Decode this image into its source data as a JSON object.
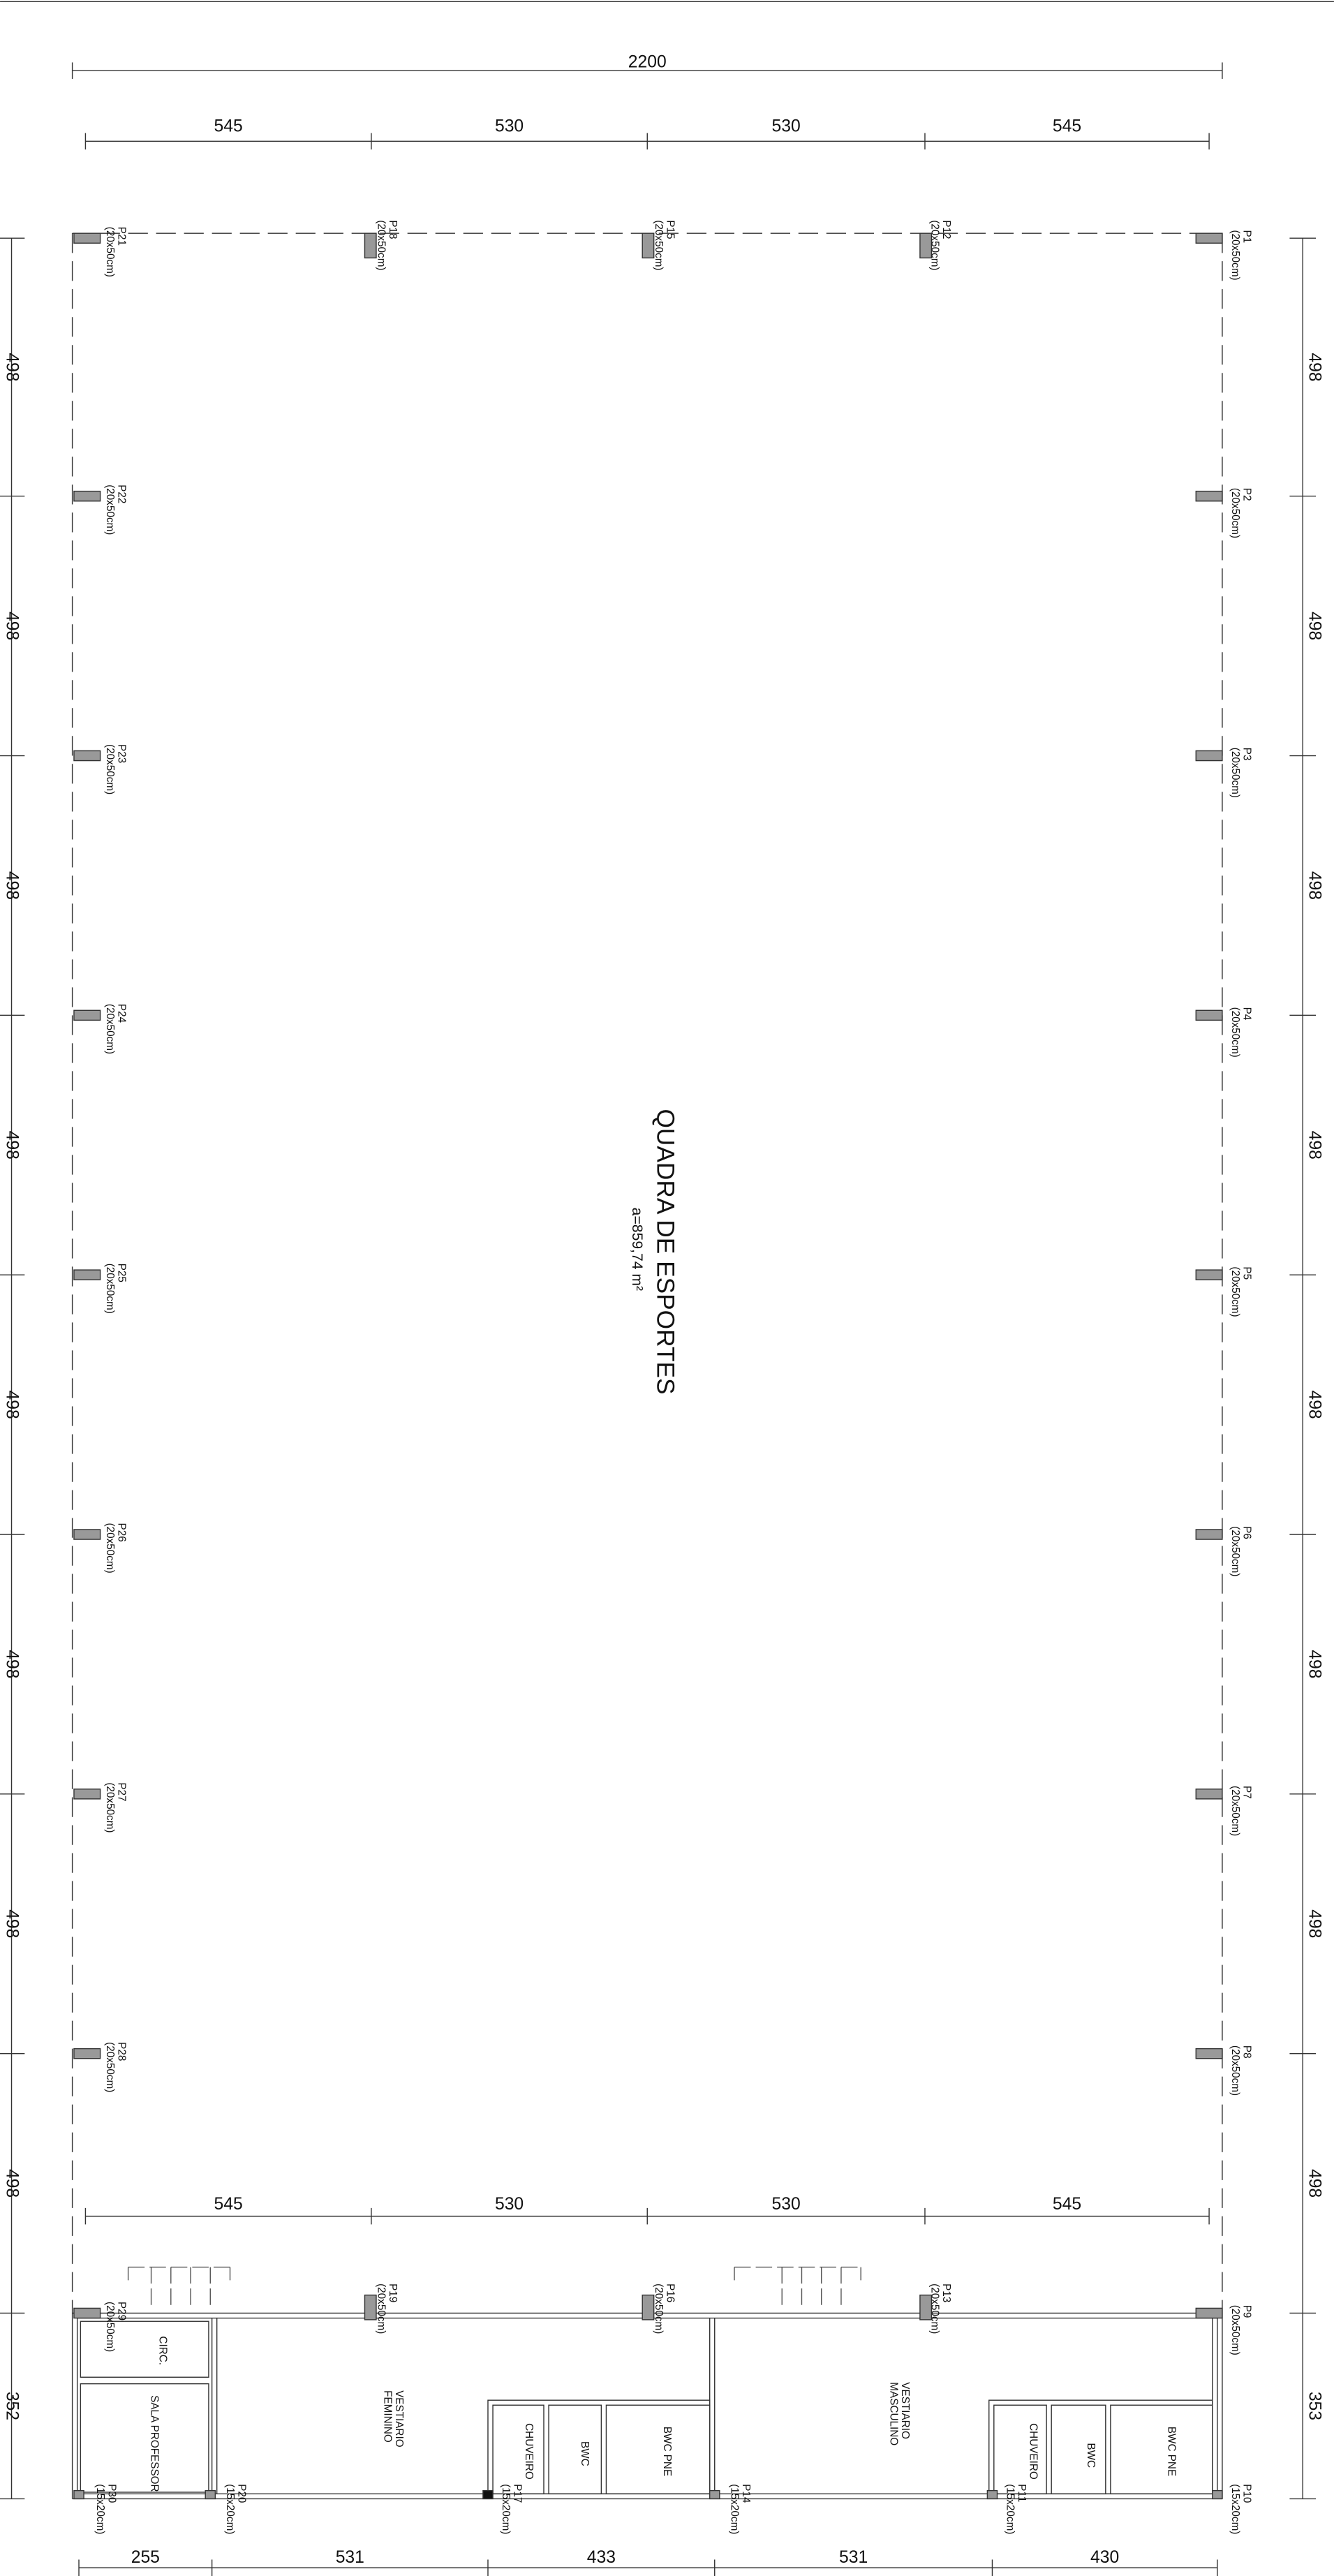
{
  "dimensions": {
    "overall": "2200",
    "top": [
      "545",
      "530",
      "530",
      "545"
    ],
    "left": [
      "498",
      "498",
      "498",
      "498",
      "498",
      "498",
      "498",
      "498",
      "352"
    ],
    "right": [
      "498",
      "498",
      "498",
      "498",
      "498",
      "498",
      "498",
      "498",
      "353"
    ],
    "bottom_upper": [
      "545",
      "530",
      "530",
      "545"
    ],
    "bottom": [
      "255",
      "531",
      "433",
      "531",
      "430"
    ]
  },
  "pillars": [
    {
      "name": "P1",
      "size": "(20x50cm)"
    },
    {
      "name": "P2",
      "size": "(20x50cm)"
    },
    {
      "name": "P3",
      "size": "(20x50cm)"
    },
    {
      "name": "P4",
      "size": "(20x50cm)"
    },
    {
      "name": "P5",
      "size": "(20x50cm)"
    },
    {
      "name": "P6",
      "size": "(20x50cm)"
    },
    {
      "name": "P7",
      "size": "(20x50cm)"
    },
    {
      "name": "P8",
      "size": "(20x50cm)"
    },
    {
      "name": "P9",
      "size": "(20x50cm)"
    },
    {
      "name": "P10",
      "size": "(15x20cm)"
    },
    {
      "name": "P11",
      "size": "(15x20cm)"
    },
    {
      "name": "P12",
      "size": "(20x50cm)"
    },
    {
      "name": "P13",
      "size": "(20x50cm)"
    },
    {
      "name": "P14",
      "size": "(15x20cm)"
    },
    {
      "name": "P15",
      "size": "(20x50cm)"
    },
    {
      "name": "P16",
      "size": "(20x50cm)"
    },
    {
      "name": "P17",
      "size": "(15x20cm)"
    },
    {
      "name": "P18",
      "size": "(20x50cm)"
    },
    {
      "name": "P19",
      "size": "(20x50cm)"
    },
    {
      "name": "P20",
      "size": "(15x20cm)"
    },
    {
      "name": "P21",
      "size": "(20x50cm)"
    },
    {
      "name": "P22",
      "size": "(20x50cm)"
    },
    {
      "name": "P23",
      "size": "(20x50cm)"
    },
    {
      "name": "P24",
      "size": "(20x50cm)"
    },
    {
      "name": "P25",
      "size": "(20x50cm)"
    },
    {
      "name": "P26",
      "size": "(20x50cm)"
    },
    {
      "name": "P27",
      "size": "(20x50cm)"
    },
    {
      "name": "P28",
      "size": "(20x50cm)"
    },
    {
      "name": "P29",
      "size": "(20x50cm)"
    },
    {
      "name": "P30",
      "size": "(15x20cm)"
    }
  ],
  "sports_court": {
    "name": "QUADRA DE ESPORTES",
    "area": "a=859,74 m²"
  },
  "rooms": [
    {
      "lines": [
        "CIRC."
      ]
    },
    {
      "lines": [
        "SALA PROFESSOR"
      ]
    },
    {
      "lines": [
        "VESTIARIO",
        "FEMININO"
      ]
    },
    {
      "lines": [
        "CHUVEIRO"
      ]
    },
    {
      "lines": [
        "BWC"
      ]
    },
    {
      "lines": [
        "BWC PNE"
      ]
    },
    {
      "lines": [
        "VESTIARIO",
        "MASCULINO"
      ]
    },
    {
      "lines": [
        "CHUVEIRO"
      ]
    },
    {
      "lines": [
        "BWC"
      ]
    },
    {
      "lines": [
        "BWC PNE"
      ]
    }
  ]
}
